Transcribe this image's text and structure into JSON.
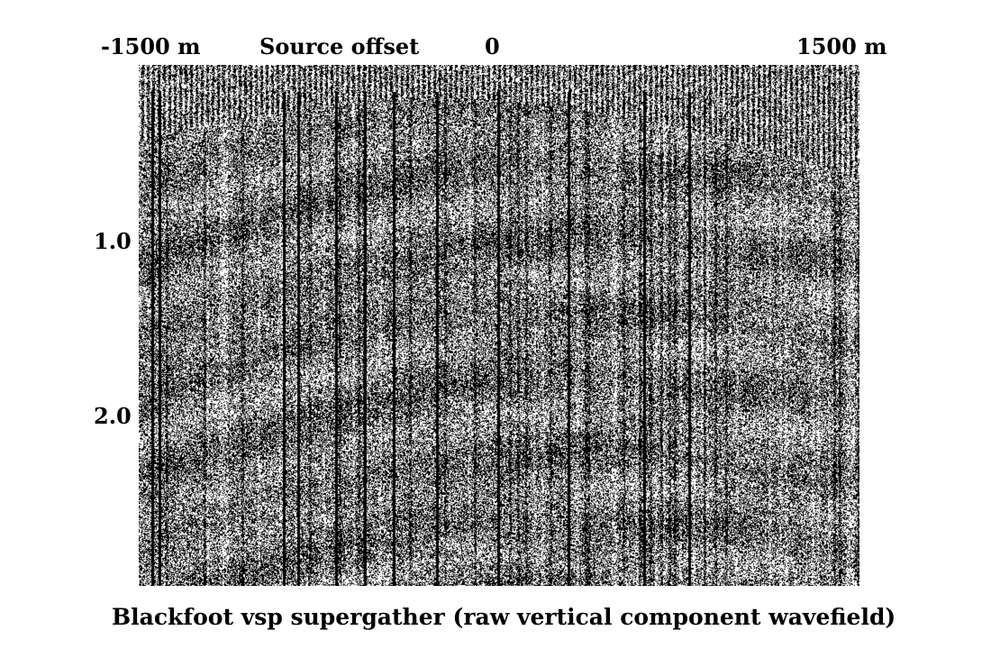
{
  "header": {
    "offset_left": "-1500 m",
    "offset_title": "Source offset",
    "offset_zero": "0",
    "offset_right": "1500 m"
  },
  "time_axis": {
    "label_1": "1.0 s",
    "label_2": "2.0 s"
  },
  "caption": "Blackfoot vsp supergather (raw vertical component wavefield)",
  "colors": {
    "trace_black": "#000000",
    "trace_white": "#ffffff"
  }
}
